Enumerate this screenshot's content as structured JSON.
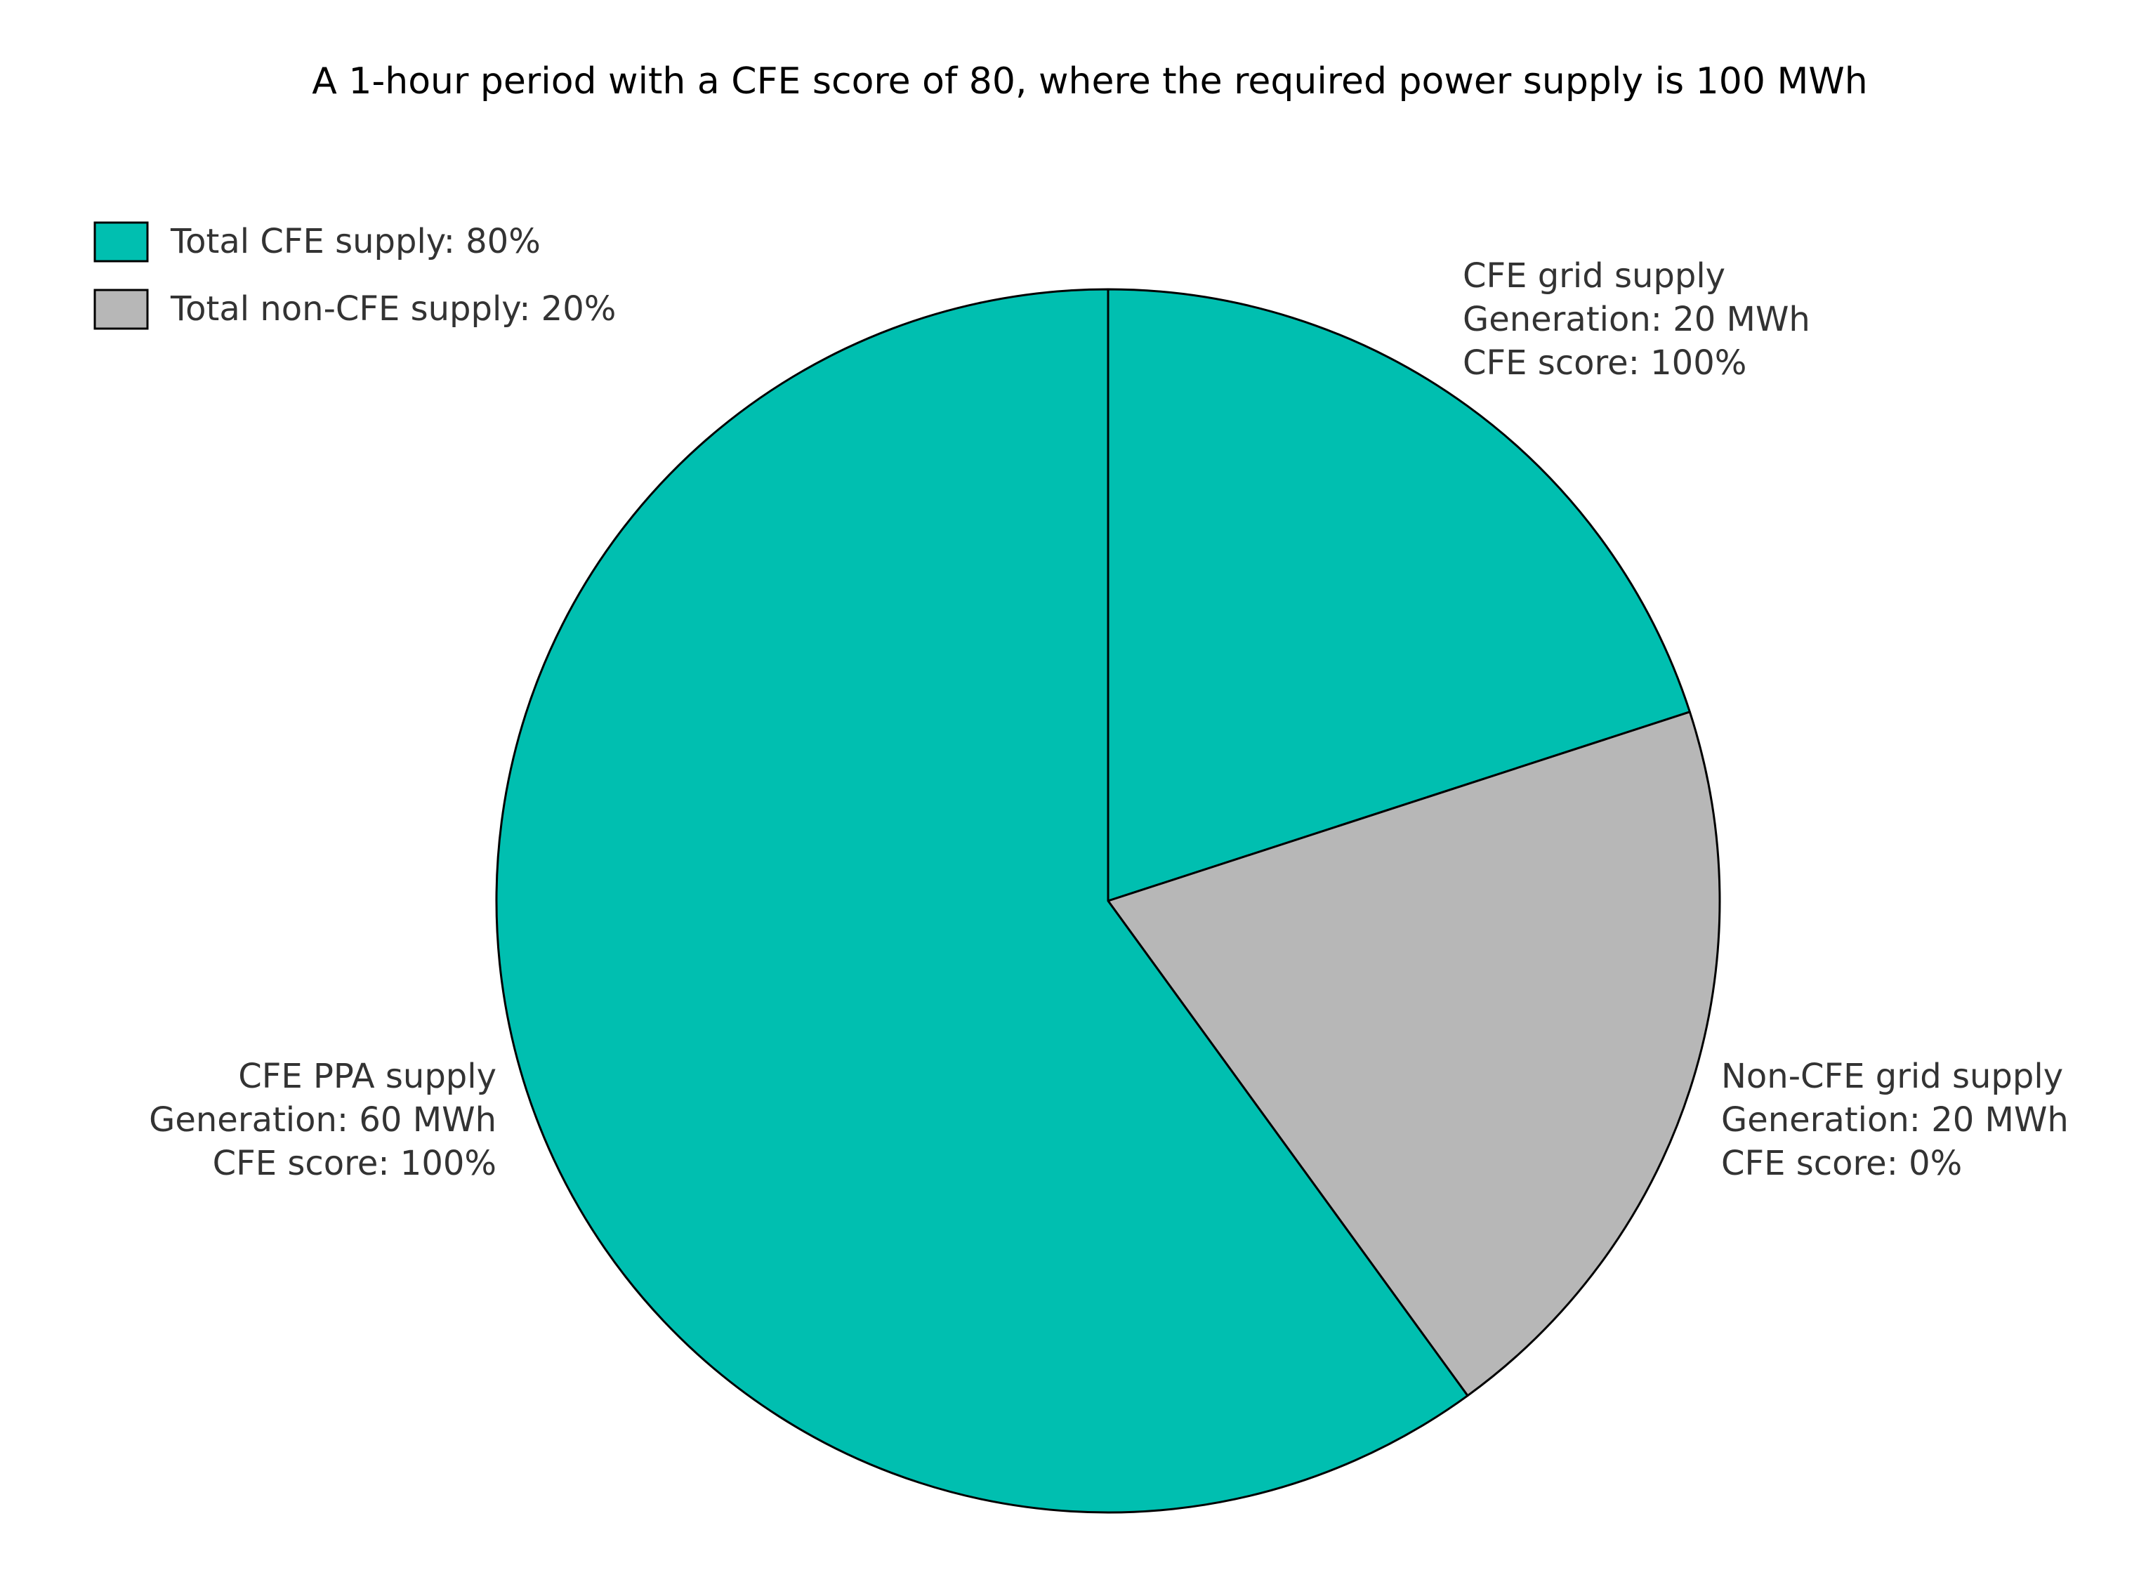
{
  "chart_data": {
    "type": "pie",
    "title": "A 1-hour period with a CFE score of 80, where the required power supply is 100 MWh",
    "categories": [
      "CFE grid supply",
      "Non-CFE grid supply",
      "CFE PPA supply"
    ],
    "values": [
      20,
      20,
      60
    ],
    "value_labels": [
      "Generation: 20 MWh",
      "Generation: 20 MWh",
      "Generation: 60 MWh"
    ],
    "score_labels": [
      "CFE score: 100%",
      "CFE score: 0%",
      "CFE score: 100%"
    ],
    "colors": [
      "#00bfb0",
      "#b7b7b7",
      "#00bfb0"
    ],
    "legend_position": "upper left",
    "legend": [
      {
        "label": "Total CFE supply: 80%",
        "color": "#00bfb0"
      },
      {
        "label": "Total non-CFE supply: 20%",
        "color": "#b7b7b7"
      }
    ]
  }
}
